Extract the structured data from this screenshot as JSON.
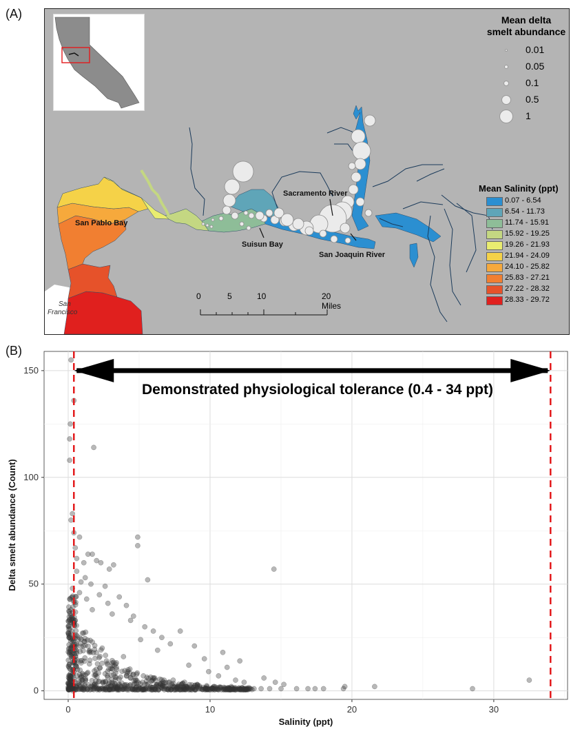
{
  "panels": {
    "a": "(A)",
    "b": "(B)"
  },
  "map": {
    "labels": {
      "san_pablo": "San Pablo Bay",
      "suisun": "Suisun Bay",
      "sacramento": "Sacramento River",
      "san_joaquin": "San Joaquin River",
      "san_francisco_1": "San",
      "san_francisco_2": "Francisco"
    },
    "abundance_legend": {
      "title_line1": "Mean delta",
      "title_line2": "smelt abundance",
      "items": [
        "0.01",
        "0.05",
        "0.1",
        "0.5",
        "1"
      ]
    },
    "salinity_legend": {
      "title": "Mean Salinity (ppt)",
      "items": [
        {
          "label": "0.07 - 6.54",
          "color": "#2b8fd1"
        },
        {
          "label": "6.54 - 11.73",
          "color": "#5fa5b8"
        },
        {
          "label": "11.74 - 15.91",
          "color": "#8ebd98"
        },
        {
          "label": "15.92 - 19.25",
          "color": "#c4d782"
        },
        {
          "label": "19.26 - 21.93",
          "color": "#e9ec70"
        },
        {
          "label": "21.94 - 24.09",
          "color": "#f5d248"
        },
        {
          "label": "24.10 - 25.82",
          "color": "#f6a93c"
        },
        {
          "label": "25.83 - 27.21",
          "color": "#f17f31"
        },
        {
          "label": "27.22 - 28.32",
          "color": "#e6522a"
        },
        {
          "label": "28.33 - 29.72",
          "color": "#e0201e"
        }
      ]
    },
    "scalebar": {
      "ticks": [
        "0",
        "5",
        "10",
        "20 Miles"
      ]
    }
  },
  "chart_data": {
    "type": "scatter",
    "xlabel": "Salinity (ppt)",
    "ylabel": "Delta smelt abundance (Count)",
    "xlim": [
      -1.7,
      35.2
    ],
    "ylim": [
      -4,
      159
    ],
    "xticks": [
      0,
      10,
      20,
      30
    ],
    "yticks": [
      0,
      50,
      100,
      150
    ],
    "grid": true,
    "reference_lines": [
      0.4,
      34
    ],
    "reference_line_color": "#e31a1c",
    "annotation": "Demonstrated physiological tolerance (0.4 - 34 ppt)",
    "point_color": "#333333",
    "points": [
      [
        0.2,
        155
      ],
      [
        0.4,
        136
      ],
      [
        0.15,
        125
      ],
      [
        0.1,
        118
      ],
      [
        1.8,
        114
      ],
      [
        0.1,
        108
      ],
      [
        0.3,
        83
      ],
      [
        0.2,
        80
      ],
      [
        0.4,
        74
      ],
      [
        0.8,
        72
      ],
      [
        4.9,
        72
      ],
      [
        4.9,
        68
      ],
      [
        0.5,
        67
      ],
      [
        1.4,
        64
      ],
      [
        1.7,
        64
      ],
      [
        0.6,
        62
      ],
      [
        1.1,
        60
      ],
      [
        3.2,
        59
      ],
      [
        2.0,
        61
      ],
      [
        2.3,
        60
      ],
      [
        14.5,
        57
      ],
      [
        5.6,
        52
      ],
      [
        2.9,
        57
      ],
      [
        0.6,
        56
      ],
      [
        1.2,
        53
      ],
      [
        0.9,
        51
      ],
      [
        1.6,
        50
      ],
      [
        2.6,
        49
      ],
      [
        0.3,
        48
      ],
      [
        0.8,
        46
      ],
      [
        2.2,
        45
      ],
      [
        3.6,
        44
      ],
      [
        1.3,
        43
      ],
      [
        2.8,
        41
      ],
      [
        4.1,
        40
      ],
      [
        1.7,
        38
      ],
      [
        4.6,
        35
      ],
      [
        3.1,
        36
      ],
      [
        4.4,
        33
      ],
      [
        5.4,
        30
      ],
      [
        6.0,
        28
      ],
      [
        7.9,
        28
      ],
      [
        6.6,
        25
      ],
      [
        5.1,
        24
      ],
      [
        7.2,
        22
      ],
      [
        8.9,
        21
      ],
      [
        6.3,
        19
      ],
      [
        10.9,
        18
      ],
      [
        12.1,
        14
      ],
      [
        9.6,
        15
      ],
      [
        11.2,
        11
      ],
      [
        8.5,
        12
      ],
      [
        13.8,
        6
      ],
      [
        14.6,
        4
      ],
      [
        15.2,
        3
      ],
      [
        15.0,
        1
      ],
      [
        16.9,
        1
      ],
      [
        17.4,
        1
      ],
      [
        18.0,
        1
      ],
      [
        19.5,
        2
      ],
      [
        21.6,
        2
      ],
      [
        28.5,
        1
      ],
      [
        32.5,
        5
      ],
      [
        13.1,
        1
      ],
      [
        13.6,
        1
      ],
      [
        12.8,
        1
      ],
      [
        14.2,
        1
      ],
      [
        9.9,
        9
      ],
      [
        10.6,
        7
      ],
      [
        11.8,
        5
      ],
      [
        12.4,
        4
      ],
      [
        16.1,
        1
      ],
      [
        19.4,
        1
      ],
      [
        3.9,
        16
      ],
      [
        2.4,
        20
      ],
      [
        1.0,
        27
      ],
      [
        0.5,
        33
      ],
      [
        0.2,
        38
      ],
      [
        0.7,
        24
      ],
      [
        1.5,
        18
      ],
      [
        2.7,
        14
      ],
      [
        3.4,
        11
      ],
      [
        4.2,
        9
      ],
      [
        5.3,
        7
      ],
      [
        6.1,
        6
      ],
      [
        7.4,
        5
      ],
      [
        8.2,
        4
      ],
      [
        9.1,
        3
      ],
      [
        10.3,
        2
      ],
      [
        11.5,
        2
      ]
    ]
  }
}
